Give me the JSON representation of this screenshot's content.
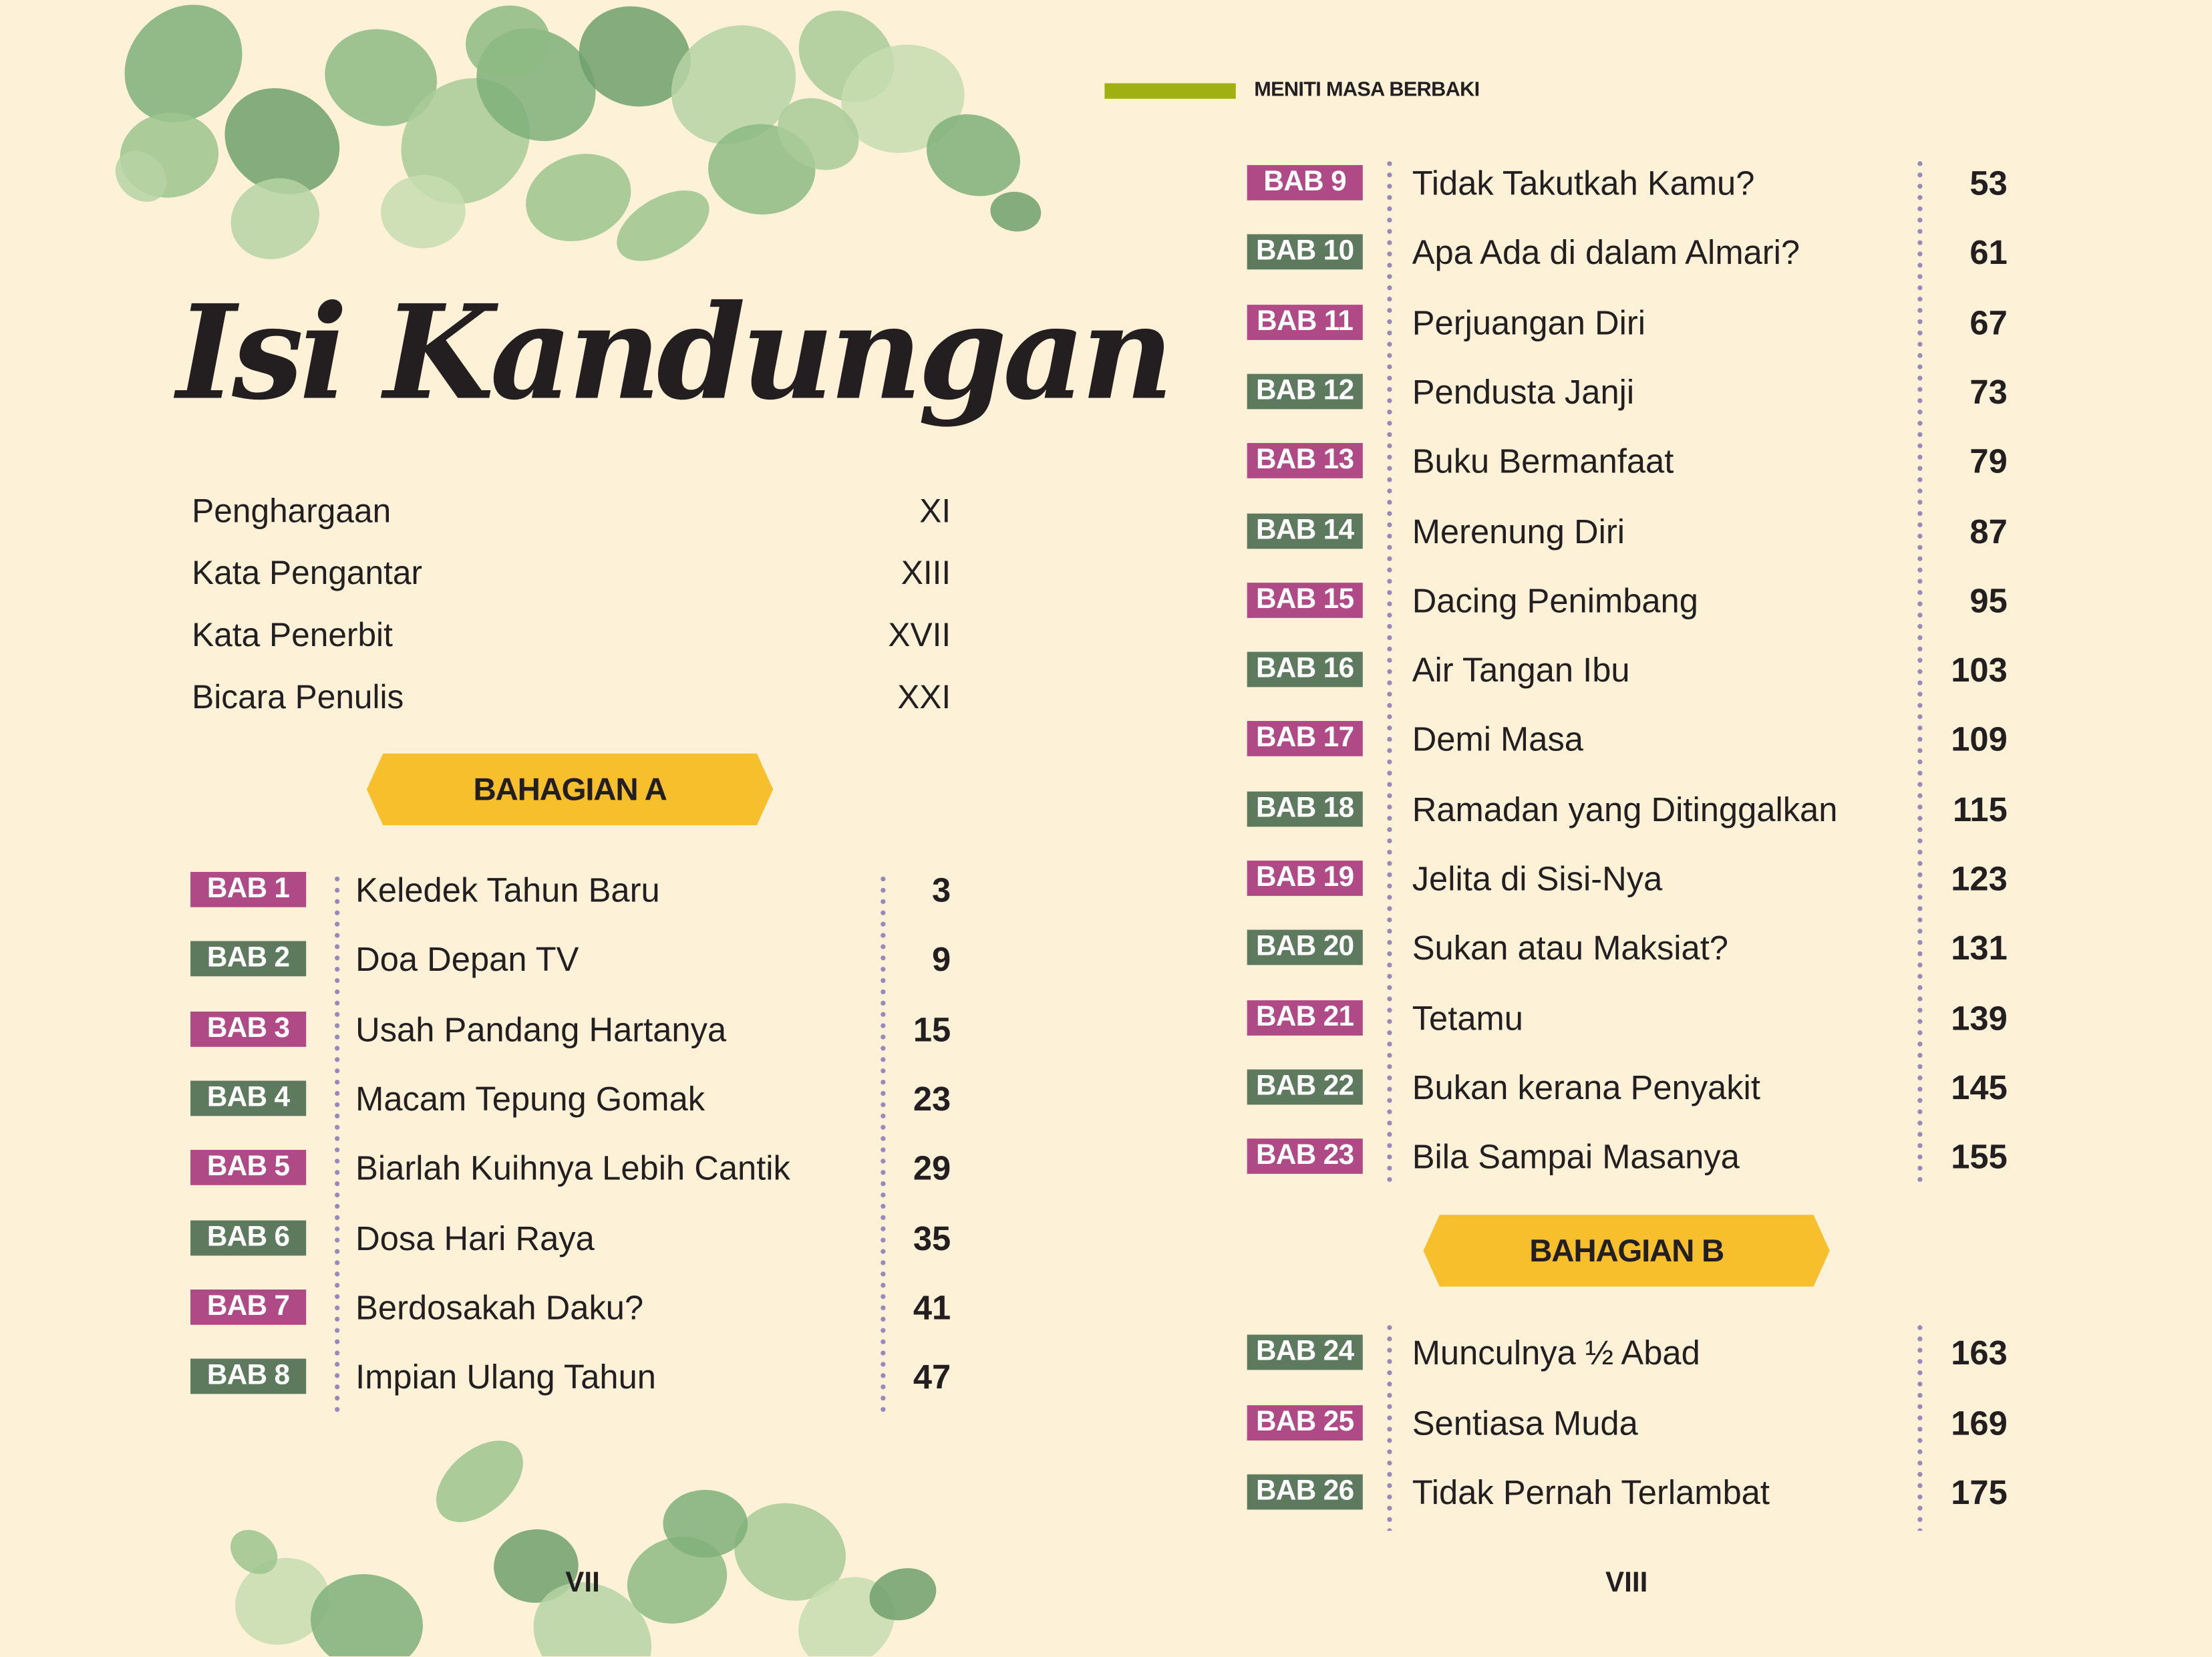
{
  "header": {
    "running_title": "MENITI MASA BERBAKI",
    "accent_color": "#A0AF12"
  },
  "title": "Isi Kandungan",
  "front_matter": [
    {
      "label": "Penghargaan",
      "page": "XI"
    },
    {
      "label": "Kata Pengantar",
      "page": "XIII"
    },
    {
      "label": "Kata Penerbit",
      "page": "XVII"
    },
    {
      "label": "Bicara Penulis",
      "page": "XXI"
    }
  ],
  "colors": {
    "badge_odd": "#B04A86",
    "badge_even": "#5E7A5E",
    "banner": "#F8BF2D",
    "background": "#FDF2D8",
    "dots": "#9A88B8"
  },
  "sections": [
    {
      "label": "BAHAGIAN A",
      "chapters": [
        {
          "badge": "BAB 1",
          "title": "Keledek Tahun Baru",
          "page": "3"
        },
        {
          "badge": "BAB 2",
          "title": "Doa Depan TV",
          "page": "9"
        },
        {
          "badge": "BAB 3",
          "title": "Usah Pandang Hartanya",
          "page": "15"
        },
        {
          "badge": "BAB 4",
          "title": "Macam Tepung Gomak",
          "page": "23"
        },
        {
          "badge": "BAB 5",
          "title": "Biarlah Kuihnya Lebih Cantik",
          "page": "29"
        },
        {
          "badge": "BAB 6",
          "title": "Dosa Hari Raya",
          "page": "35"
        },
        {
          "badge": "BAB 7",
          "title": "Berdosakah Daku?",
          "page": "41"
        },
        {
          "badge": "BAB 8",
          "title": "Impian Ulang Tahun",
          "page": "47"
        }
      ],
      "continued": [
        {
          "badge": "BAB 9",
          "title": "Tidak Takutkah Kamu?",
          "page": "53"
        },
        {
          "badge": "BAB 10",
          "title": "Apa Ada di dalam Almari?",
          "page": "61"
        },
        {
          "badge": "BAB 11",
          "title": "Perjuangan Diri",
          "page": "67"
        },
        {
          "badge": "BAB 12",
          "title": "Pendusta Janji",
          "page": "73"
        },
        {
          "badge": "BAB 13",
          "title": "Buku Bermanfaat",
          "page": "79"
        },
        {
          "badge": "BAB 14",
          "title": "Merenung Diri",
          "page": "87"
        },
        {
          "badge": "BAB 15",
          "title": "Dacing Penimbang",
          "page": "95"
        },
        {
          "badge": "BAB 16",
          "title": "Air Tangan Ibu",
          "page": "103"
        },
        {
          "badge": "BAB 17",
          "title": "Demi Masa",
          "page": "109"
        },
        {
          "badge": "BAB 18",
          "title": "Ramadan yang Ditinggalkan",
          "page": "115"
        },
        {
          "badge": "BAB 19",
          "title": "Jelita di Sisi-Nya",
          "page": "123"
        },
        {
          "badge": "BAB 20",
          "title": "Sukan atau Maksiat?",
          "page": "131"
        },
        {
          "badge": "BAB 21",
          "title": "Tetamu",
          "page": "139"
        },
        {
          "badge": "BAB 22",
          "title": "Bukan kerana Penyakit",
          "page": "145"
        },
        {
          "badge": "BAB 23",
          "title": "Bila Sampai Masanya",
          "page": "155"
        }
      ]
    },
    {
      "label": "BAHAGIAN B",
      "chapters": [
        {
          "badge": "BAB 24",
          "title": "Munculnya ½ Abad",
          "page": "163"
        },
        {
          "badge": "BAB 25",
          "title": "Sentiasa Muda",
          "page": "169"
        },
        {
          "badge": "BAB 26",
          "title": "Tidak Pernah Terlambat",
          "page": "175"
        }
      ]
    }
  ],
  "page_numbers": {
    "left": "VII",
    "right": "VIII"
  },
  "decoration": "eucalyptus-leaves"
}
